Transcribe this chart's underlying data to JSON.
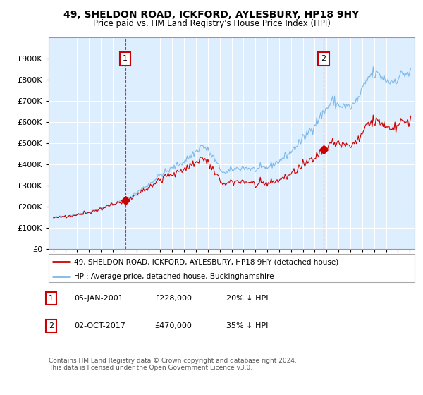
{
  "title": "49, SHELDON ROAD, ICKFORD, AYLESBURY, HP18 9HY",
  "subtitle": "Price paid vs. HM Land Registry's House Price Index (HPI)",
  "legend_line1": "49, SHELDON ROAD, ICKFORD, AYLESBURY, HP18 9HY (detached house)",
  "legend_line2": "HPI: Average price, detached house, Buckinghamshire",
  "annotation1_label": "1",
  "annotation1_date": "05-JAN-2001",
  "annotation1_price": "£228,000",
  "annotation1_hpi": "20% ↓ HPI",
  "annotation2_label": "2",
  "annotation2_date": "02-OCT-2017",
  "annotation2_price": "£470,000",
  "annotation2_hpi": "35% ↓ HPI",
  "footnote": "Contains HM Land Registry data © Crown copyright and database right 2024.\nThis data is licensed under the Open Government Licence v3.0.",
  "hpi_color": "#7db8e8",
  "price_color": "#cc0000",
  "marker1_x": 2001.04,
  "marker1_y": 228000,
  "marker2_x": 2017.75,
  "marker2_y": 470000,
  "ylim": [
    0,
    1000000
  ],
  "xlim_start": 1994.6,
  "xlim_end": 2025.4,
  "background_color": "#ffffff",
  "plot_bg_color": "#ddeeff",
  "grid_color": "#ffffff"
}
